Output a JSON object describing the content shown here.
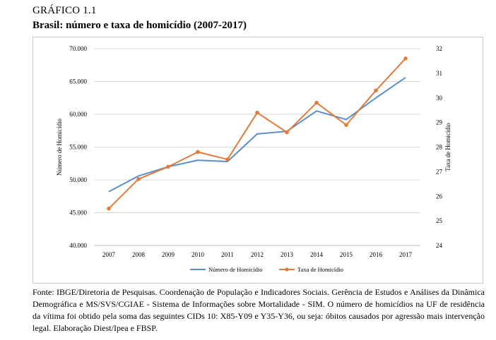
{
  "header": {
    "label": "GRÁFICO 1.1",
    "title": "Brasil: número e taxa de homicídio (2007-2017)"
  },
  "chart_data": {
    "type": "line",
    "categories": [
      "2007",
      "2008",
      "2009",
      "2010",
      "2011",
      "2012",
      "2013",
      "2014",
      "2015",
      "2016",
      "2017"
    ],
    "series": [
      {
        "name": "Número de Homicídio",
        "axis": "left",
        "color": "#5b8fcb",
        "values": [
          48200,
          50600,
          52000,
          53000,
          52800,
          57000,
          57400,
          60500,
          59200,
          62500,
          65600
        ]
      },
      {
        "name": "Taxa de Homicídio",
        "axis": "right",
        "color": "#e07b39",
        "values": [
          25.5,
          26.7,
          27.2,
          27.8,
          27.5,
          29.4,
          28.6,
          29.8,
          28.9,
          30.3,
          31.6
        ]
      }
    ],
    "ylabel_left": "Número de Homicídio",
    "ylabel_right": "Taxa de Homicídio",
    "ylim_left": [
      40000,
      70000
    ],
    "ylim_right": [
      24,
      32
    ],
    "yticks_left": [
      "40.000",
      "45.000",
      "50.000",
      "55.000",
      "60.000",
      "65.000",
      "70.000"
    ],
    "yticks_right": [
      "24",
      "25",
      "26",
      "27",
      "28",
      "29",
      "30",
      "31",
      "32"
    ],
    "grid": true,
    "legend": "bottom"
  },
  "footnote": "Fonte: IBGE/Diretoria de Pesquisas. Coordenação de População e Indicadores Sociais. Gerência de Estudos e Análises da Dinâmica Demográfica e MS/SVS/CGIAE - Sistema de Informações sobre Mortalidade - SIM. O número de homicídios na UF de residência da vítima foi obtido pela soma das seguintes CIDs 10: X85-Y09 e Y35-Y36, ou seja: óbitos causados por agressão mais intervenção legal. Elaboração Diest/Ipea e FBSP."
}
